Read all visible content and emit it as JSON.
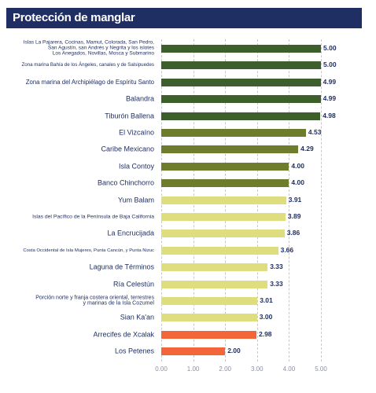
{
  "chart_data": {
    "type": "barh",
    "title": "Protección de manglar",
    "categories": [
      "Islas La Pajarera, Cocinas, Mamut, Colorada, San Pedro,\nSan Agustín, san Andrés y Negrita y los islotes\nLos Anegados, Novillas, Mosca y Submarino",
      "Zona marina Bahía de los Ángeles, canales y de Salsipuedes",
      "Zona marina del Archipiélago de Espíritu Santo",
      "Balandra",
      "Tiburón Ballena",
      "El Vizcaíno",
      "Caribe Mexicano",
      "Isla Contoy",
      "Banco Chinchorro",
      "Yum Balam",
      "Islas del Pacífico de la Península de Baja California",
      "La Encrucijada",
      "Costa Occidental de Isla Mujeres, Punta Cancún, y Punta Nizuc",
      "Laguna de Términos",
      "Ría Celestún",
      "Porción norte y franja costera oriental, terrestres\ny marinas de la Isla Cozumel",
      "Sian Ka'an",
      "Arrecifes de Xcalak",
      "Los Petenes"
    ],
    "values": [
      5,
      5,
      4.99,
      4.99,
      4.98,
      4.53,
      4.29,
      4,
      4,
      3.91,
      3.89,
      3.86,
      3.66,
      3.33,
      3.33,
      3.01,
      3,
      2.98,
      2
    ],
    "value_labels": [
      "5.00",
      "5.00",
      "4.99",
      "4.99",
      "4.98",
      "4.53",
      "4.29",
      "4.00",
      "4.00",
      "3.91",
      "3.89",
      "3.86",
      "3.66",
      "3.33",
      "3.33",
      "3.01",
      "3.00",
      "2.98",
      "2.00"
    ],
    "colors": [
      "#3c5f2c",
      "#3c5f2c",
      "#3c5f2c",
      "#3c5f2c",
      "#3c5f2c",
      "#6e7d2b",
      "#6e7d2b",
      "#6e7d2b",
      "#6e7d2b",
      "#dede7e",
      "#dede7e",
      "#dede7e",
      "#dede7e",
      "#dede7e",
      "#dede7e",
      "#dede7e",
      "#dede7e",
      "#f2663a",
      "#f2663a"
    ],
    "xlim": [
      0,
      5
    ],
    "xticks": [
      {
        "value": 0,
        "label": "0.00"
      },
      {
        "value": 1,
        "label": "1.00"
      },
      {
        "value": 2,
        "label": "2.00"
      },
      {
        "value": 3,
        "label": "3.00"
      },
      {
        "value": 4,
        "label": "4.00"
      },
      {
        "value": 5,
        "label": "5.00"
      }
    ],
    "grid": true
  }
}
